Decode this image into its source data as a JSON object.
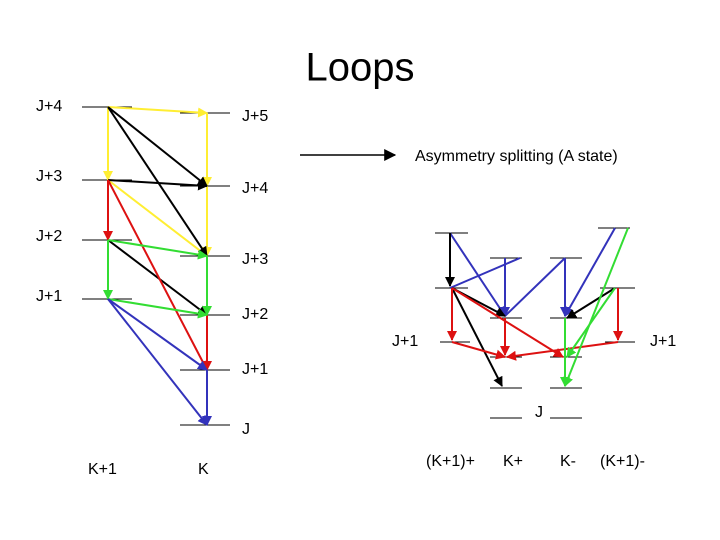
{
  "title": "Loops",
  "left_diagram": {
    "k_plus_1_levels": [
      "J+4",
      "J+3",
      "J+2",
      "J+1"
    ],
    "k_levels": [
      "J+5",
      "J+4",
      "J+3",
      "J+2",
      "J+1",
      "J"
    ],
    "columns": [
      "K+1",
      "K"
    ]
  },
  "annotation": "Asymmetry splitting (A state)",
  "right_diagram": {
    "levels": [
      "J+1",
      "J+1",
      "J"
    ],
    "columns": [
      "(K+1)+",
      "K+",
      "K-",
      "(K+1)-"
    ]
  }
}
